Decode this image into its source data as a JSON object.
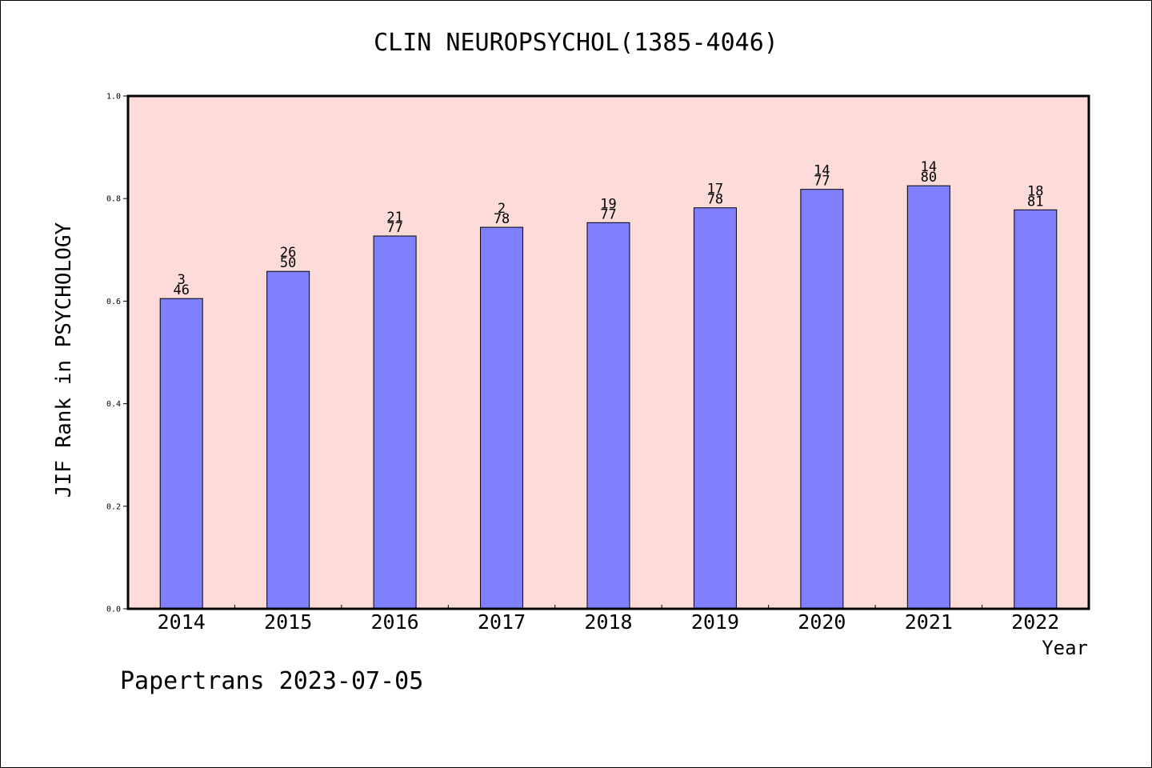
{
  "chart_data": {
    "type": "bar",
    "title": "CLIN NEUROPSYCHOL(1385-4046)",
    "xlabel": "Year",
    "ylabel": "JIF Rank in PSYCHOLOGY",
    "ylim": [
      0,
      1.0
    ],
    "yticks": [
      "0.0",
      "0.2",
      "0.4",
      "0.6",
      "0.8",
      "1.0"
    ],
    "categories": [
      "2014",
      "2015",
      "2016",
      "2017",
      "2018",
      "2019",
      "2020",
      "2021",
      "2022"
    ],
    "values": [
      0.605,
      0.658,
      0.727,
      0.744,
      0.753,
      0.782,
      0.818,
      0.825,
      0.778
    ],
    "label_top": [
      "3",
      "26",
      "21",
      "2",
      "19",
      "17",
      "14",
      "14",
      "18"
    ],
    "label_bottom": [
      "46",
      "50",
      "77",
      "78",
      "77",
      "78",
      "77",
      "80",
      "81"
    ],
    "grid": false,
    "colors": {
      "plot_bg": "#fddbd8",
      "bar": "#8080ff",
      "bar_edge": "#000000"
    }
  },
  "footer": "Papertrans 2023-07-05"
}
